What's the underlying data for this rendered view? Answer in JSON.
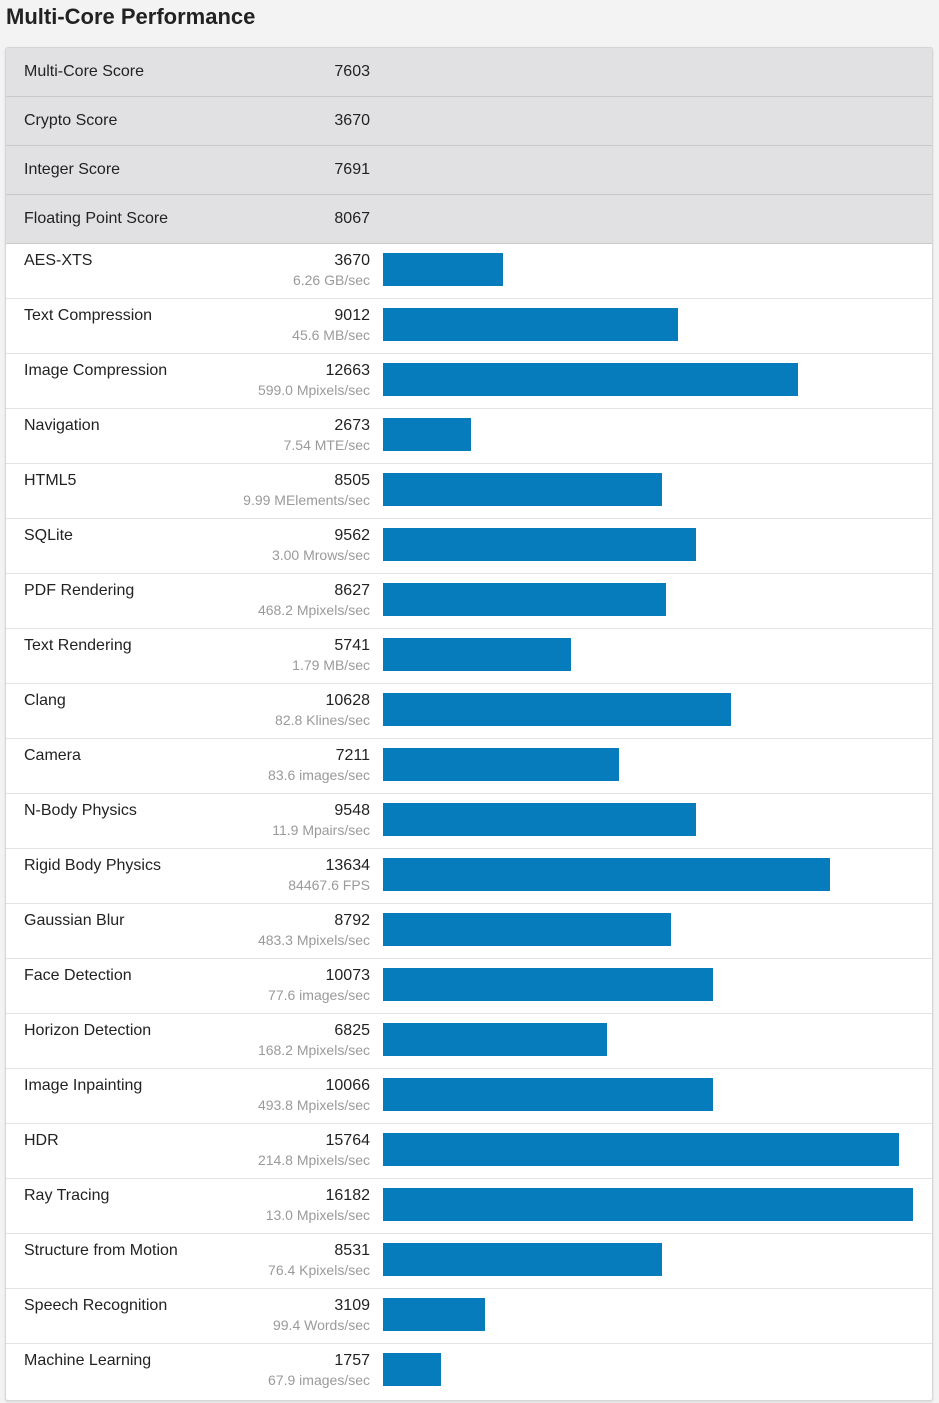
{
  "title": "Multi-Core Performance",
  "accent_color": "#077cbd",
  "chart_data": {
    "type": "bar",
    "orientation": "horizontal",
    "title": "Multi-Core Performance",
    "summary": [
      {
        "name": "Multi-Core Score",
        "score": "7603"
      },
      {
        "name": "Crypto Score",
        "score": "3670"
      },
      {
        "name": "Integer Score",
        "score": "7691"
      },
      {
        "name": "Floating Point Score",
        "score": "8067"
      }
    ],
    "categories": [
      "AES-XTS",
      "Text Compression",
      "Image Compression",
      "Navigation",
      "HTML5",
      "SQLite",
      "PDF Rendering",
      "Text Rendering",
      "Clang",
      "Camera",
      "N-Body Physics",
      "Rigid Body Physics",
      "Gaussian Blur",
      "Face Detection",
      "Horizon Detection",
      "Image Inpainting",
      "HDR",
      "Ray Tracing",
      "Structure from Motion",
      "Speech Recognition",
      "Machine Learning"
    ],
    "values": [
      3670,
      9012,
      12663,
      2673,
      8505,
      9562,
      8627,
      5741,
      10628,
      7211,
      9548,
      13634,
      8792,
      10073,
      6825,
      10066,
      15764,
      16182,
      8531,
      3109,
      1757
    ],
    "rates": [
      "6.26 GB/sec",
      "45.6 MB/sec",
      "599.0 Mpixels/sec",
      "7.54 MTE/sec",
      "9.99 MElements/sec",
      "3.00 Mrows/sec",
      "468.2 Mpixels/sec",
      "1.79 MB/sec",
      "82.8 Klines/sec",
      "83.6 images/sec",
      "11.9 Mpairs/sec",
      "84467.6 FPS",
      "483.3 Mpixels/sec",
      "77.6 images/sec",
      "168.2 Mpixels/sec",
      "493.8 Mpixels/sec",
      "214.8 Mpixels/sec",
      "13.0 Mpixels/sec",
      "76.4 Kpixels/sec",
      "99.4 Words/sec",
      "67.9 images/sec"
    ],
    "xlim": [
      0,
      16182
    ],
    "grid": false,
    "legend": "none"
  }
}
